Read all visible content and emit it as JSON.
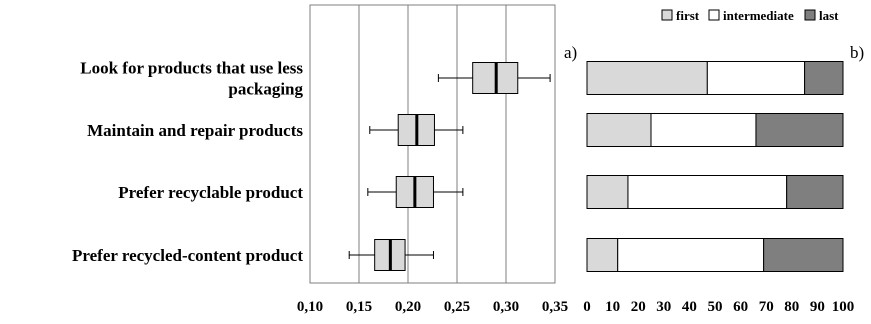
{
  "chart_data": [
    {
      "type": "box",
      "panel_label": "a)",
      "categories": [
        [
          "Look for products that use less",
          "packaging"
        ],
        [
          "Maintain and repair products"
        ],
        [
          "Prefer recyclable product"
        ],
        [
          "Prefer recycled-content product"
        ]
      ],
      "boxes": [
        {
          "whisker_low": 0.231,
          "q1": 0.266,
          "median": 0.29,
          "q3": 0.312,
          "whisker_high": 0.345
        },
        {
          "whisker_low": 0.161,
          "q1": 0.19,
          "median": 0.209,
          "q3": 0.227,
          "whisker_high": 0.256
        },
        {
          "whisker_low": 0.159,
          "q1": 0.188,
          "median": 0.207,
          "q3": 0.226,
          "whisker_high": 0.256
        },
        {
          "whisker_low": 0.14,
          "q1": 0.166,
          "median": 0.182,
          "q3": 0.197,
          "whisker_high": 0.226
        }
      ],
      "x_ticks": [
        "0,10",
        "0,15",
        "0,20",
        "0,25",
        "0,30",
        "0,35"
      ],
      "xlim": [
        0.1,
        0.35
      ],
      "grid": "vertical",
      "colors": {
        "box_fill": "#d9d9d9",
        "stroke": "#000000",
        "grid": "#7f7f7f"
      }
    },
    {
      "type": "bar",
      "stacked": true,
      "orientation": "horizontal",
      "panel_label": "b)",
      "series": [
        {
          "name": "first",
          "color": "#d9d9d9",
          "values": [
            47,
            25,
            16,
            12
          ]
        },
        {
          "name": "intermediate",
          "color": "#ffffff",
          "values": [
            38,
            41,
            62,
            57
          ]
        },
        {
          "name": "last",
          "color": "#7f7f7f",
          "values": [
            15,
            34,
            22,
            31
          ]
        }
      ],
      "x_ticks": [
        "0",
        "10",
        "20",
        "30",
        "40",
        "50",
        "60",
        "70",
        "80",
        "90",
        "100"
      ],
      "xlim": [
        0,
        100
      ],
      "legend_position": "top",
      "legend_markers": [
        "□",
        "□",
        "■"
      ]
    }
  ]
}
